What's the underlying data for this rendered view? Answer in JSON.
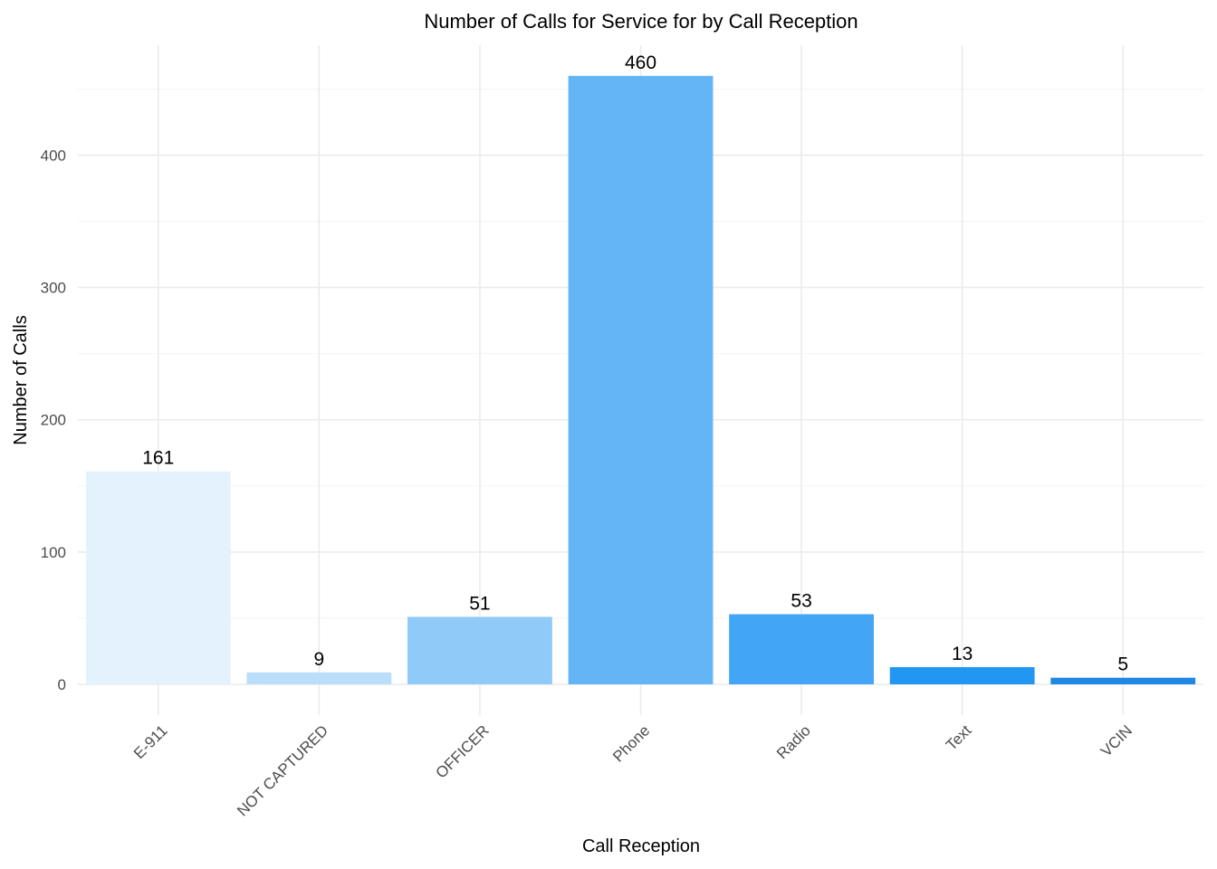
{
  "chart_data": {
    "type": "bar",
    "title": "Number of Calls for Service for by Call Reception",
    "xlabel": "Call Reception",
    "ylabel": "Number of Calls",
    "categories": [
      "E-911",
      "NOT CAPTURED",
      "OFFICER",
      "Phone",
      "Radio",
      "Text",
      "VCIN"
    ],
    "values": [
      161,
      9,
      51,
      460,
      53,
      13,
      5
    ],
    "colors": [
      "#E3F2FD",
      "#BBDEFB",
      "#90CAF9",
      "#64B5F6",
      "#42A5F5",
      "#2196F3",
      "#1E88E5"
    ],
    "ylim": [
      0,
      483
    ],
    "yticks": [
      0,
      100,
      200,
      300,
      400
    ],
    "grid": true,
    "legend": "none"
  }
}
